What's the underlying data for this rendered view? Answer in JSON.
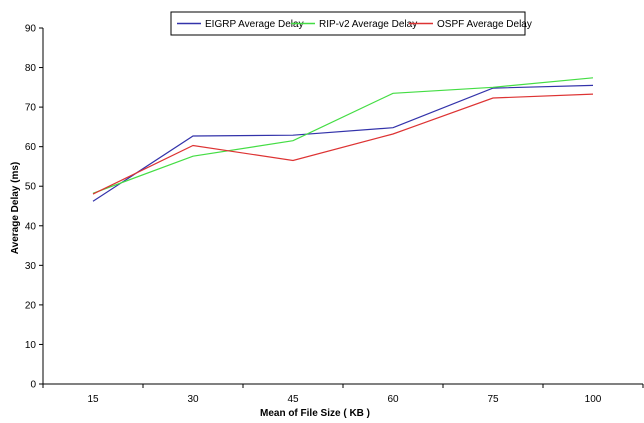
{
  "chart_data": {
    "type": "line",
    "categories": [
      "15",
      "30",
      "45",
      "60",
      "75",
      "100"
    ],
    "series": [
      {
        "name": "EIGRP Average Delay",
        "color": "#3333aa",
        "values": [
          46.2,
          62.7,
          62.9,
          64.8,
          74.8,
          75.5
        ]
      },
      {
        "name": "RIP-v2 Average Delay",
        "color": "#44dd44",
        "values": [
          48.2,
          57.6,
          61.5,
          73.5,
          75.0,
          77.4
        ]
      },
      {
        "name": "OSPF Average Delay",
        "color": "#dd3333",
        "values": [
          48.0,
          60.3,
          56.5,
          63.2,
          72.3,
          73.3
        ]
      }
    ],
    "xlabel": "Mean of File Size ( KB )",
    "ylabel": "Average Delay (ms)",
    "ylim": [
      0,
      90
    ],
    "yticks": [
      0,
      10,
      20,
      30,
      40,
      50,
      60,
      70,
      80,
      90
    ],
    "grid": false,
    "legend_position": "top-center"
  }
}
